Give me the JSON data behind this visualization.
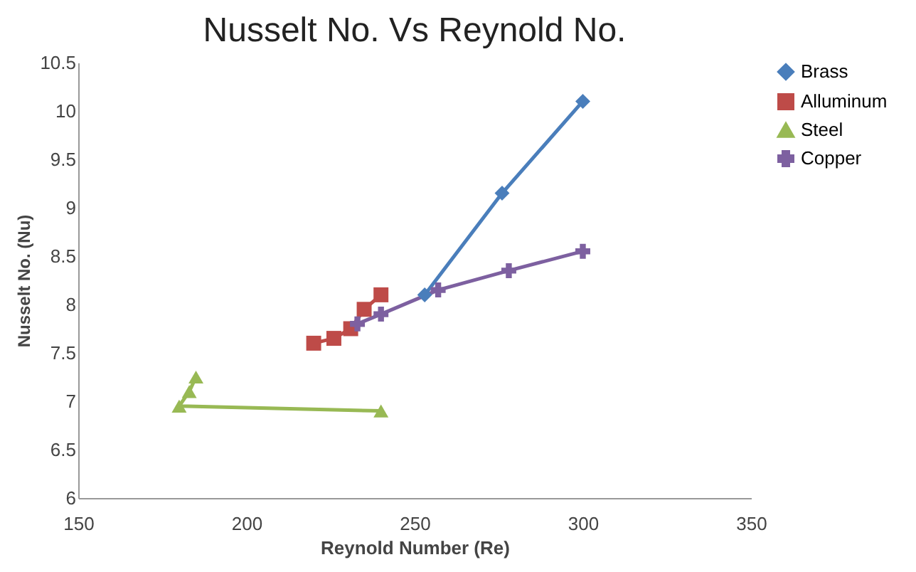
{
  "chart_data": {
    "type": "line",
    "title": "Nusselt No. Vs Reynold No.",
    "xlabel": "Reynold Number (Re)",
    "ylabel": "Nusselt No. (Nu)",
    "xlim": [
      150,
      350
    ],
    "xticks": [
      150,
      200,
      250,
      300,
      350
    ],
    "ylim": [
      6,
      10.5
    ],
    "yticks": [
      6,
      6.5,
      7,
      7.5,
      8,
      8.5,
      9,
      9.5,
      10,
      10.5
    ],
    "grid": false,
    "legend": "right",
    "series": [
      {
        "name": "Brass",
        "color": "#4a7ebb",
        "marker": "diamond",
        "x": [
          253,
          276,
          300
        ],
        "values": [
          8.1,
          9.15,
          10.1
        ]
      },
      {
        "name": "Alluminum",
        "color": "#be4b48",
        "marker": "square",
        "x": [
          220,
          226,
          231,
          235,
          240
        ],
        "values": [
          7.6,
          7.65,
          7.75,
          7.95,
          8.1
        ]
      },
      {
        "name": "Steel",
        "color": "#98b954",
        "marker": "triangle",
        "x": [
          185,
          183,
          180,
          240
        ],
        "values": [
          7.25,
          7.1,
          6.95,
          6.9
        ]
      },
      {
        "name": "Copper",
        "color": "#7d60a0",
        "marker": "cross",
        "x": [
          233,
          240,
          257,
          278,
          300
        ],
        "values": [
          7.8,
          7.9,
          8.15,
          8.35,
          8.55
        ]
      }
    ]
  }
}
